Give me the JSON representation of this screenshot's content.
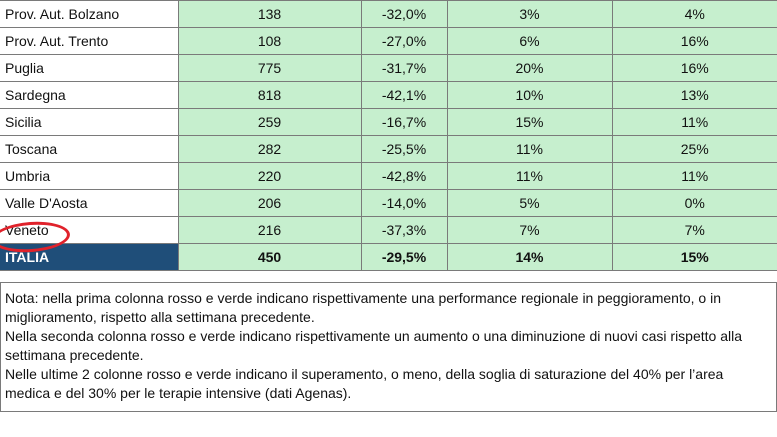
{
  "rows": [
    {
      "region": "Prov. Aut. Bolzano",
      "c1": "138",
      "c2": "-32,0%",
      "c3": "3%",
      "c4": "4%"
    },
    {
      "region": "Prov. Aut. Trento",
      "c1": "108",
      "c2": "-27,0%",
      "c3": "6%",
      "c4": "16%"
    },
    {
      "region": "Puglia",
      "c1": "775",
      "c2": "-31,7%",
      "c3": "20%",
      "c4": "16%"
    },
    {
      "region": "Sardegna",
      "c1": "818",
      "c2": "-42,1%",
      "c3": "10%",
      "c4": "13%"
    },
    {
      "region": "Sicilia",
      "c1": "259",
      "c2": "-16,7%",
      "c3": "15%",
      "c4": "11%"
    },
    {
      "region": "Toscana",
      "c1": "282",
      "c2": "-25,5%",
      "c3": "11%",
      "c4": "25%"
    },
    {
      "region": "Umbria",
      "c1": "220",
      "c2": "-42,8%",
      "c3": "11%",
      "c4": "11%"
    },
    {
      "region": "Valle D'Aosta",
      "c1": "206",
      "c2": "-14,0%",
      "c3": "5%",
      "c4": "0%"
    },
    {
      "region": "Veneto",
      "c1": "216",
      "c2": "-37,3%",
      "c3": "7%",
      "c4": "7%"
    }
  ],
  "total": {
    "region": "ITALIA",
    "c1": "450",
    "c2": "-29,5%",
    "c3": "14%",
    "c4": "15%"
  },
  "note": {
    "p1": "Nota: nella prima colonna rosso e verde indicano rispettivamente una performance regionale in peggioramento, o in miglioramento, rispetto alla settimana precedente.",
    "p2": "Nella seconda colonna rosso e verde indicano rispettivamente un aumento o una diminuzione di nuovi casi rispetto alla settimana precedente.",
    "p3": "Nelle ultime 2 colonne rosso e verde indicano il superamento, o meno, della soglia di saturazione del 40% per l’area medica e del 30% per le terapie intensive (dati Agenas)."
  },
  "colors": {
    "green_cell": "#c6efce",
    "total_label_bg": "#1f4e79",
    "highlight_circle": "#e0222b"
  }
}
